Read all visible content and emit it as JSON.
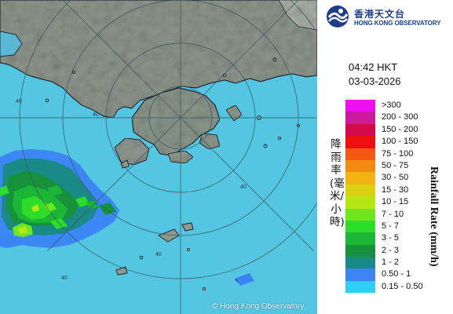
{
  "header": {
    "org_name_zh": "香港天文台",
    "org_name_en": "HONG KONG OBSERVATORY",
    "logo_icon": "hko-logo-icon"
  },
  "timestamp": {
    "time": "04:42 HKT",
    "date": "03-03-2026"
  },
  "map": {
    "copyright": "© Hong Kong Observatory",
    "range_ring_labels": [
      "40",
      "40",
      "40",
      "40",
      "40"
    ],
    "colors": {
      "sea": "#54c6e2",
      "land": "#8a948a",
      "coastline": "#1f2b33",
      "range_ring": "#3d5560"
    }
  },
  "legend": {
    "title_zh": "降雨率(毫米/小時)",
    "title_en": "Rainfall Rate (mm/h)",
    "items": [
      {
        "label": ">300",
        "color": "#ee11ee"
      },
      {
        "label": "200 - 300",
        "color": "#cc1aa0"
      },
      {
        "label": "150 - 200",
        "color": "#d40a4a"
      },
      {
        "label": "100 - 150",
        "color": "#ee1010"
      },
      {
        "label": "75 - 100",
        "color": "#f25a14"
      },
      {
        "label": "50 - 75",
        "color": "#f08a10"
      },
      {
        "label": "30 - 50",
        "color": "#f2b414"
      },
      {
        "label": "15 - 30",
        "color": "#dcd010"
      },
      {
        "label": "10 - 15",
        "color": "#b6e614"
      },
      {
        "label": "7 - 10",
        "color": "#6ee81c"
      },
      {
        "label": "5 - 7",
        "color": "#2edc2a"
      },
      {
        "label": "3 - 5",
        "color": "#1cb636"
      },
      {
        "label": "2 - 3",
        "color": "#16923a"
      },
      {
        "label": "1 - 2",
        "color": "#1a8a86"
      },
      {
        "label": "0.50 - 1",
        "color": "#3a84f4"
      },
      {
        "label": "0.15 - 0.50",
        "color": "#2ecff4"
      }
    ]
  }
}
